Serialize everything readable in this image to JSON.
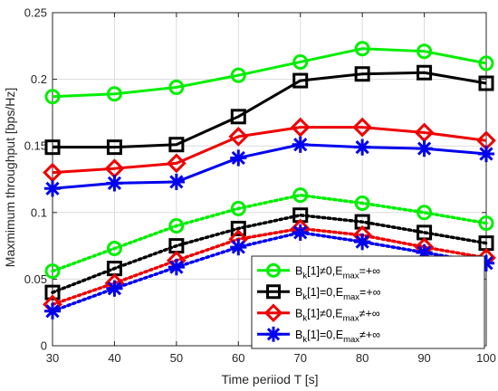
{
  "chart_data": {
    "type": "line",
    "xlabel": "Time periiod T [s]",
    "ylabel": "Maxmimum throughput [bps/Hz]",
    "xlim": [
      30,
      100
    ],
    "ylim": [
      0,
      0.25
    ],
    "x_ticks": [
      30,
      40,
      50,
      60,
      70,
      80,
      90,
      100
    ],
    "y_ticks": [
      0,
      0.05,
      0.1,
      0.15,
      0.2,
      0.25
    ],
    "y_tick_labels": [
      "0",
      "0.05",
      "0.1",
      "0.15",
      "0.2",
      "0.25"
    ],
    "grid": true,
    "legend_placement": "bottom-right",
    "x": [
      30,
      40,
      50,
      60,
      70,
      80,
      90,
      100
    ],
    "series": [
      {
        "legend": true,
        "label_main": "B",
        "label_sub": "k",
        "label_mid": "[1]≠0,E",
        "label_sub2": "max",
        "label_end": "=+∞",
        "color": "#00ee00",
        "marker": "circle",
        "dashed": false,
        "values": [
          0.187,
          0.189,
          0.194,
          0.203,
          0.213,
          0.223,
          0.221,
          0.212
        ]
      },
      {
        "legend": true,
        "label_main": "B",
        "label_sub": "k",
        "label_mid": "[1]=0,E",
        "label_sub2": "max",
        "label_end": "=+∞",
        "color": "#000000",
        "marker": "square",
        "dashed": false,
        "values": [
          0.149,
          0.149,
          0.151,
          0.172,
          0.199,
          0.204,
          0.205,
          0.197
        ]
      },
      {
        "legend": true,
        "label_main": "B",
        "label_sub": "k",
        "label_mid": "[1]≠0,E",
        "label_sub2": "max",
        "label_end": "≠+∞",
        "color": "#ee0000",
        "marker": "diamond",
        "dashed": false,
        "values": [
          0.13,
          0.133,
          0.137,
          0.157,
          0.164,
          0.164,
          0.16,
          0.154
        ]
      },
      {
        "legend": true,
        "label_main": "B",
        "label_sub": "k",
        "label_mid": "[1]=0,E",
        "label_sub2": "max",
        "label_end": "≠+∞",
        "color": "#0000ee",
        "marker": "asterisk",
        "dashed": false,
        "values": [
          0.118,
          0.122,
          0.123,
          0.141,
          0.151,
          0.149,
          0.148,
          0.144
        ]
      },
      {
        "legend": false,
        "color": "#00ee00",
        "marker": "circle",
        "dashed": true,
        "values": [
          0.056,
          0.073,
          0.09,
          0.103,
          0.113,
          0.107,
          0.1,
          0.092
        ]
      },
      {
        "legend": false,
        "color": "#000000",
        "marker": "square",
        "dashed": true,
        "values": [
          0.04,
          0.058,
          0.075,
          0.088,
          0.098,
          0.093,
          0.085,
          0.077
        ]
      },
      {
        "legend": false,
        "color": "#ee0000",
        "marker": "diamond",
        "dashed": true,
        "values": [
          0.031,
          0.047,
          0.064,
          0.08,
          0.088,
          0.083,
          0.074,
          0.066
        ]
      },
      {
        "legend": false,
        "color": "#0000ee",
        "marker": "asterisk",
        "dashed": true,
        "values": [
          0.026,
          0.043,
          0.059,
          0.074,
          0.085,
          0.078,
          0.07,
          0.062
        ]
      }
    ]
  }
}
